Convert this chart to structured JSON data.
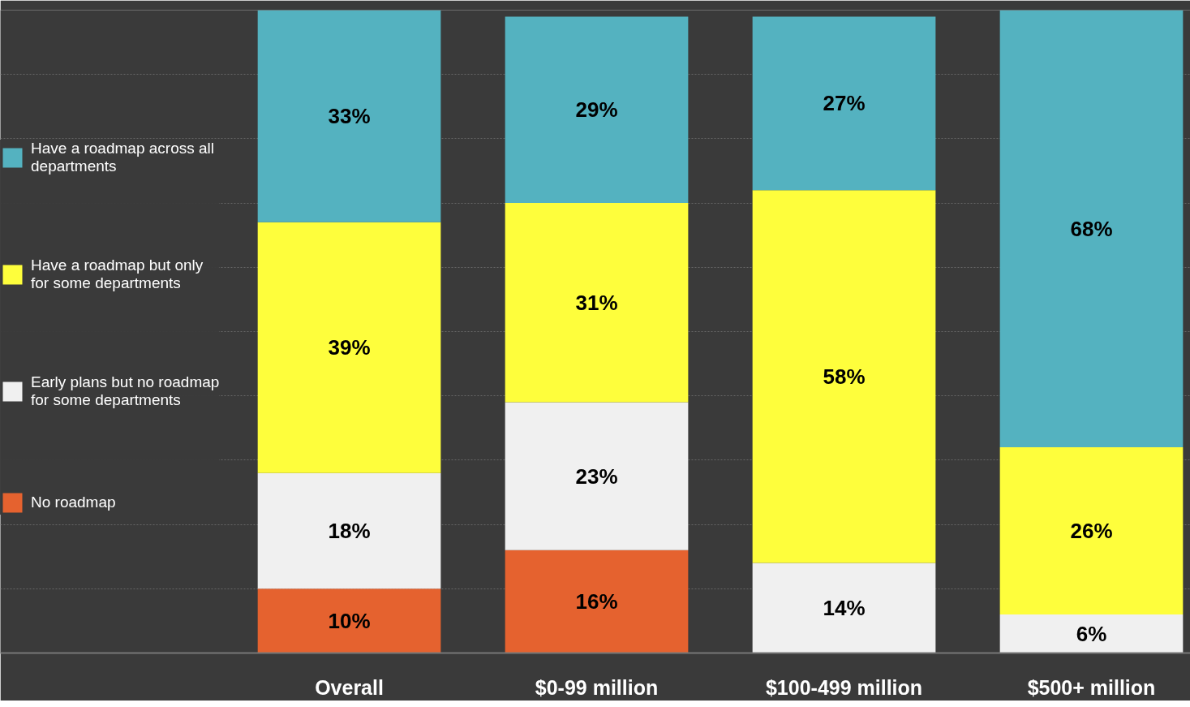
{
  "chart_data": {
    "type": "bar",
    "stacked": true,
    "categories": [
      "Overall",
      "$0-99 million",
      "$100-499 million",
      "$500+ million"
    ],
    "series": [
      {
        "name": "No roadmap",
        "color": "#e5622f",
        "values": [
          10,
          16,
          null,
          null
        ],
        "value_labels": [
          "10%",
          "16%",
          null,
          null
        ]
      },
      {
        "name": "Early plans but no roadmap for some departments",
        "color": "#f0f0f0",
        "values": [
          18,
          23,
          14,
          6
        ],
        "value_labels": [
          "18%",
          "23%",
          "14%",
          "6%"
        ]
      },
      {
        "name": "Have a roadmap but only for some departments",
        "color": "#fefe3c",
        "values": [
          39,
          31,
          58,
          26
        ],
        "value_labels": [
          "39%",
          "31%",
          "58%",
          "26%"
        ]
      },
      {
        "name": "Have a roadmap across all departments",
        "color": "#54b2c0",
        "values": [
          33,
          29,
          27,
          68
        ],
        "value_labels": [
          "33%",
          "29%",
          "27%",
          "68%"
        ]
      }
    ],
    "ylim": [
      0,
      100
    ],
    "yticks": [
      {
        "value": 0,
        "label": null
      },
      {
        "value": 10,
        "label": null
      },
      {
        "value": 20,
        "label": null
      },
      {
        "value": 30,
        "label": null
      },
      {
        "value": 40,
        "label": null
      },
      {
        "value": 50,
        "label": null
      },
      {
        "value": 60,
        "label": null
      },
      {
        "value": 70,
        "label": null
      },
      {
        "value": 80,
        "label": null
      },
      {
        "value": 90,
        "label": null
      },
      {
        "value": 100,
        "label": null
      }
    ],
    "tick_labels": "x",
    "grid": "y",
    "legend": "left"
  }
}
